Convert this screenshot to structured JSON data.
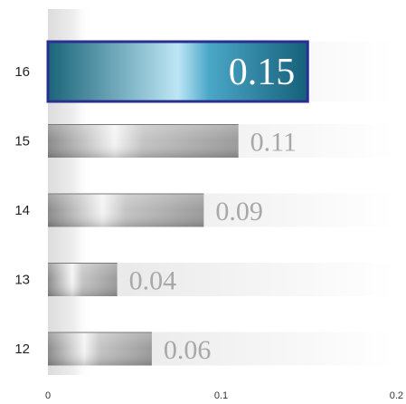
{
  "chart_data": {
    "type": "bar",
    "orientation": "horizontal",
    "categories": [
      "16",
      "15",
      "14",
      "13",
      "12"
    ],
    "values": [
      0.15,
      0.11,
      0.09,
      0.04,
      0.06
    ],
    "value_labels": [
      "0.15",
      "0.11",
      "0.09",
      "0.04",
      "0.06"
    ],
    "highlighted_category": "16",
    "xlim": [
      0,
      0.2
    ],
    "x_ticks": [
      "0",
      "0.1",
      "0.2"
    ],
    "title": "",
    "xlabel": "",
    "ylabel": "",
    "grid": false,
    "legend": "none",
    "colors": {
      "highlight_bar": "#1f6f8b",
      "highlight_border": "#2a2f8f",
      "bar": "#a3a3a3",
      "track": "#ececec",
      "value_label": "#a8a8a8"
    }
  }
}
